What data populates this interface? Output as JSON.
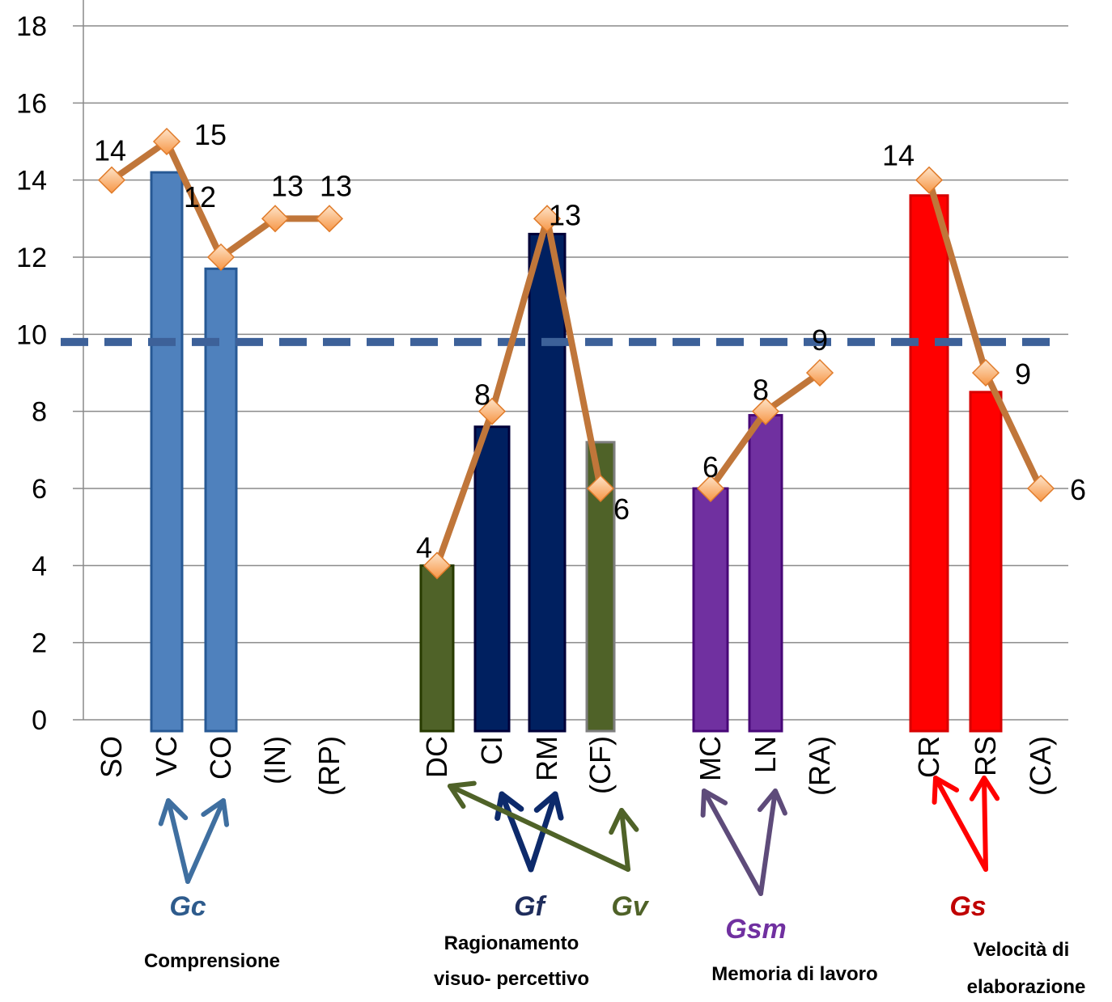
{
  "chart_data": {
    "type": "bar",
    "ylim": [
      0,
      18
    ],
    "yticks": [
      "0",
      "2",
      "4",
      "6",
      "8",
      "10",
      "12",
      "14",
      "16",
      "18"
    ],
    "grid": true,
    "reference_line": 9.8,
    "categories": [
      "SO",
      "VC",
      "CO",
      "(IN)",
      "(RP)",
      "DC",
      "CI",
      "RM",
      "(CF)",
      "MC",
      "LN",
      "(RA)",
      "CR",
      "RS",
      "(CA)"
    ],
    "bars": [
      {
        "category": "VC",
        "value": 14.2,
        "color": "#4f81bd"
      },
      {
        "category": "CO",
        "value": 11.7,
        "color": "#4f81bd"
      },
      {
        "category": "DC",
        "value": 4,
        "color": "#4f6228"
      },
      {
        "category": "CI",
        "value": 7.6,
        "color": "#002060"
      },
      {
        "category": "RM",
        "value": 12.6,
        "color": "#002060"
      },
      {
        "category": "(CF)",
        "value": 7.2,
        "color": "#4f6228"
      },
      {
        "category": "MC",
        "value": 6,
        "color": "#7030a0"
      },
      {
        "category": "LN",
        "value": 7.9,
        "color": "#7030a0"
      },
      {
        "category": "CR",
        "value": 13.6,
        "color": "#ff0000"
      },
      {
        "category": "RS",
        "value": 8.5,
        "color": "#ff0000"
      }
    ],
    "line_segments": [
      {
        "points": [
          [
            "SO",
            14
          ],
          [
            "VC",
            15
          ],
          [
            "CO",
            12
          ],
          [
            "(IN)",
            13
          ],
          [
            "(RP)",
            13
          ]
        ]
      },
      {
        "points": [
          [
            "DC",
            4
          ],
          [
            "CI",
            8
          ],
          [
            "RM",
            13
          ],
          [
            "(CF)",
            6
          ]
        ]
      },
      {
        "points": [
          [
            "MC",
            6
          ],
          [
            "LN",
            8
          ],
          [
            "(RA)",
            9
          ]
        ]
      },
      {
        "points": [
          [
            "CR",
            14
          ],
          [
            "RS",
            9
          ],
          [
            "(CA)",
            6
          ]
        ]
      }
    ],
    "line_color": "#c0763a",
    "marker_color": "#f79646",
    "data_labels": [
      {
        "category": "SO",
        "text": "14"
      },
      {
        "category": "VC",
        "text": "15"
      },
      {
        "category": "CO",
        "text": "12"
      },
      {
        "category": "(IN)",
        "text": "13"
      },
      {
        "category": "(RP)",
        "text": "13"
      },
      {
        "category": "DC",
        "text": "4"
      },
      {
        "category": "CI",
        "text": "8"
      },
      {
        "category": "RM",
        "text": "13"
      },
      {
        "category": "(CF)",
        "text": "6"
      },
      {
        "category": "MC",
        "text": "6"
      },
      {
        "category": "LN",
        "text": "8"
      },
      {
        "category": "(RA)",
        "text": "9"
      },
      {
        "category": "CR",
        "text": "14"
      },
      {
        "category": "RS",
        "text": "9"
      },
      {
        "category": "(CA)",
        "text": "6"
      }
    ],
    "groups": [
      {
        "factor": "Gc",
        "caption": [
          "Comprensione"
        ],
        "color": "#2e5b8c",
        "arrow_color": "#3f6fa0",
        "targets": [
          "VC",
          "CO"
        ]
      },
      {
        "factor": "Gf",
        "caption": [
          "Ragionamento",
          "visuo- percettivo"
        ],
        "color": "#1f2d5c",
        "arrow_color": "#0d2a6b",
        "targets": [
          "CI",
          "RM"
        ]
      },
      {
        "factor": "Gv",
        "caption": [],
        "color": "#4f6228",
        "arrow_color": "#4f6228",
        "targets": [
          "DC",
          "(CF)"
        ]
      },
      {
        "factor": "Gsm",
        "caption": [
          "Memoria di lavoro"
        ],
        "color": "#7030a0",
        "arrow_color": "#5e4b7a",
        "targets": [
          "MC",
          "LN"
        ]
      },
      {
        "factor": "Gs",
        "caption": [
          "Velocità di",
          "elaborazione"
        ],
        "color": "#c00000",
        "arrow_color": "#ff0000",
        "targets": [
          "CR",
          "RS"
        ]
      }
    ]
  }
}
